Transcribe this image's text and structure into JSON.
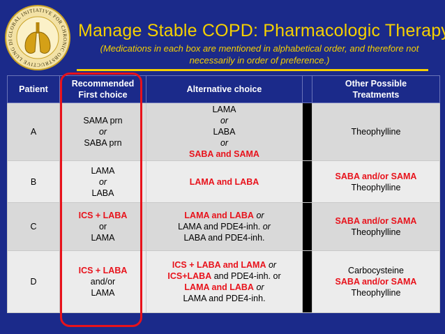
{
  "logo": {
    "ring_text": "GLOBAL INITIATIVE FOR CHRONIC OBSTRUCTIVE LUNG DISEASE"
  },
  "title": "Manage Stable COPD:  Pharmacologic Therapy",
  "subtitle": "(Medications in each box are mentioned in alphabetical order, and therefore not necessarily in order of preference.)",
  "table": {
    "headers": {
      "patient": "Patient",
      "first_1": "Recommended",
      "first_2": "First choice",
      "alternative": "Alternative choice",
      "other_1": "Other Possible",
      "other_2": "Treatments"
    },
    "rows": [
      {
        "patient": "A",
        "first": [
          "SAMA prn",
          "or",
          "SABA prn"
        ],
        "alt": [
          "LAMA",
          "or",
          "LABA",
          "or",
          "SABA and SAMA"
        ],
        "other": [
          "Theophylline"
        ]
      },
      {
        "patient": "B",
        "first": [
          "LAMA",
          "or",
          "LABA"
        ],
        "alt": [
          "LAMA and LABA"
        ],
        "other": [
          "SABA and/or SAMA",
          "Theophylline"
        ]
      },
      {
        "patient": "C",
        "first": [
          "ICS + LABA",
          "or",
          "LAMA"
        ],
        "alt": [
          "LAMA and LABA",
          "or",
          "LAMA and PDE4-inh.",
          "or",
          "LABA and PDE4-inh."
        ],
        "other": [
          "SABA and/or SAMA",
          "Theophylline"
        ]
      },
      {
        "patient": "D",
        "first": [
          "ICS + LABA",
          "and/or",
          "LAMA"
        ],
        "alt": [
          "ICS + LABA and LAMA",
          "or",
          "ICS+LABA",
          "and PDE4-inh. or",
          "LAMA and LABA",
          "or",
          "LAMA and PDE4-inh."
        ],
        "other": [
          "Carbocysteine",
          "SABA and/or SAMA",
          "Theophylline"
        ]
      }
    ]
  },
  "colors": {
    "background": "#1b2a8a",
    "title": "#f5d000",
    "emphasis": "#e8121b"
  }
}
